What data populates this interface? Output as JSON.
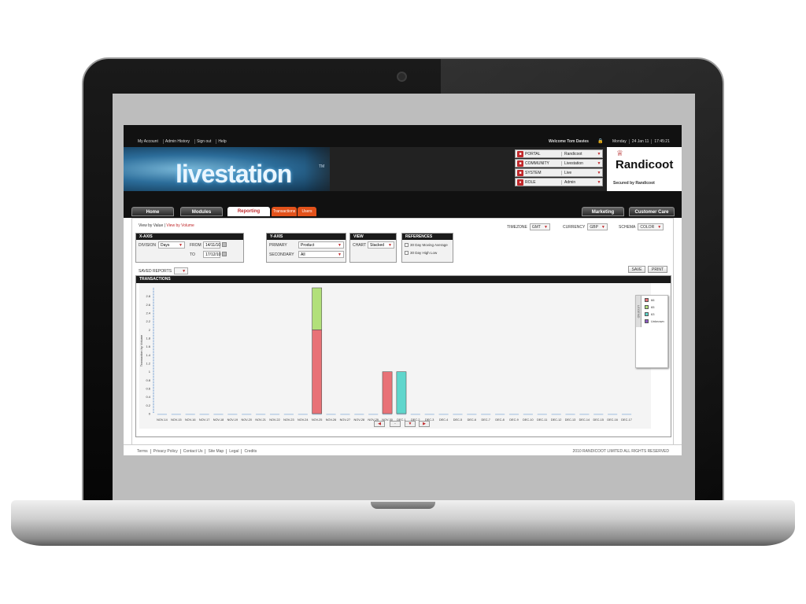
{
  "topbar": {
    "links": [
      "My Account",
      "Admin History",
      "Sign out",
      "Help"
    ],
    "welcome": "Welcome Tom Davies",
    "day": "Monday",
    "date": "24 Jan 11",
    "time": "17:45:21"
  },
  "logo": {
    "text": "livestation",
    "tm": "TM"
  },
  "selectors": [
    {
      "label": "PORTAL",
      "value": "Randicoot",
      "icon": "portal-icon"
    },
    {
      "label": "COMMUNITY",
      "value": "Livestation",
      "icon": "community-icon"
    },
    {
      "label": "SYSTEM",
      "value": "Live",
      "icon": "system-icon"
    },
    {
      "label": "ROLE",
      "value": "Admin",
      "icon": "role-icon"
    }
  ],
  "brand": {
    "name": "Randicoot",
    "secured": "Secured by Randicoot"
  },
  "nav": {
    "home": "Home",
    "modules": "Modules",
    "reporting": "Reporting",
    "sub_transactions": "Transactions",
    "sub_users": "Users",
    "marketing": "Marketing",
    "customer_care": "Customer Care"
  },
  "view": {
    "by_value": "View by Value",
    "by_volume": "View by Volume"
  },
  "options": {
    "timezone_label": "TIMEZONE",
    "timezone": "GMT",
    "currency_label": "CURRENCY",
    "currency": "GBP",
    "schema_label": "SCHEMA",
    "schema": "COLOR"
  },
  "xaxis": {
    "title": "X-AXIS",
    "division_label": "DIVISION",
    "division": "Days",
    "from_label": "FROM",
    "from": "14/11/10",
    "to_label": "TO",
    "to": "17/12/10"
  },
  "yaxis": {
    "title": "Y-AXIS",
    "primary_label": "PRIMARY",
    "primary": "Product",
    "secondary_label": "SECONDARY",
    "secondary": "All"
  },
  "viewpanel": {
    "title": "VIEW",
    "chart_label": "CHART",
    "chart": "Stacked"
  },
  "references": {
    "title": "REFERENCES",
    "items": [
      "30 Day Moving Average",
      "30 Day High Low"
    ]
  },
  "saved_reports": "SAVED REPORTS",
  "buttons": {
    "save": "SAVE",
    "print": "PRINT"
  },
  "chart_title": "TRANSACTIONS",
  "colors": {
    "red": "#e87277",
    "green": "#b2e07a",
    "teal": "#5fd6cc",
    "purple": "#8d5bc4",
    "accent": "#c0282b"
  },
  "chart_data": {
    "type": "bar",
    "stacked": true,
    "title": "TRANSACTIONS",
    "ylabel": "Transaction by Volume",
    "ylim": [
      0,
      3
    ],
    "yticks": [
      0,
      0.2,
      0.4,
      0.6,
      0.8,
      1,
      1.2,
      1.4,
      1.6,
      1.8,
      2,
      2.2,
      2.4,
      2.6,
      2.8
    ],
    "categories": [
      "NOV-14",
      "NOV-15",
      "NOV-16",
      "NOV-17",
      "NOV-18",
      "NOV-19",
      "NOV-20",
      "NOV-21",
      "NOV-22",
      "NOV-23",
      "NOV-24",
      "NOV-25",
      "NOV-26",
      "NOV-27",
      "NOV-28",
      "NOV-29",
      "NOV-30",
      "DEC-1",
      "DEC-2",
      "DEC-3",
      "DEC-4",
      "DEC-5",
      "DEC-6",
      "DEC-7",
      "DEC-8",
      "DEC-9",
      "DEC-10",
      "DEC-11",
      "DEC-12",
      "DEC-13",
      "DEC-14",
      "DEC-15",
      "DEC-16",
      "DEC-17"
    ],
    "series": [
      {
        "name": "66",
        "color": "#e87277",
        "values": [
          0,
          0,
          0,
          0,
          0,
          0,
          0,
          0,
          0,
          0,
          0,
          2,
          0,
          0,
          0,
          0,
          1,
          0,
          0,
          0,
          0,
          0,
          0,
          0,
          0,
          0,
          0,
          0,
          0,
          0,
          0,
          0,
          0,
          0
        ]
      },
      {
        "name": "65",
        "color": "#b2e07a",
        "values": [
          0,
          0,
          0,
          0,
          0,
          0,
          0,
          0,
          0,
          0,
          0,
          1,
          0,
          0,
          0,
          0,
          0,
          0,
          0,
          0,
          0,
          0,
          0,
          0,
          0,
          0,
          0,
          0,
          0,
          0,
          0,
          0,
          0,
          0
        ]
      },
      {
        "name": "63",
        "color": "#5fd6cc",
        "values": [
          0,
          0,
          0,
          0,
          0,
          0,
          0,
          0,
          0,
          0,
          0,
          0,
          0,
          0,
          0,
          0,
          0,
          1,
          0,
          0,
          0,
          0,
          0,
          0,
          0,
          0,
          0,
          0,
          0,
          0,
          0,
          0,
          0,
          0
        ]
      },
      {
        "name": "Unknown",
        "color": "#8d5bc4",
        "values": [
          0,
          0,
          0,
          0,
          0,
          0,
          0,
          0,
          0,
          0,
          0,
          0,
          0,
          0,
          0,
          0,
          0,
          0,
          0,
          0,
          0,
          0,
          0,
          0,
          0,
          0,
          0,
          0,
          0,
          0,
          0,
          0,
          0,
          0
        ]
      }
    ],
    "legend": "right",
    "grid": false
  },
  "legend_title": "LEGEND",
  "footer": {
    "links": [
      "Terms",
      "Privacy Policy",
      "Contact Us",
      "Site Map",
      "Legal",
      "Credits"
    ],
    "copyright": "2010 RANDICOOT LIMITED ALL RIGHTS RESERVED"
  }
}
